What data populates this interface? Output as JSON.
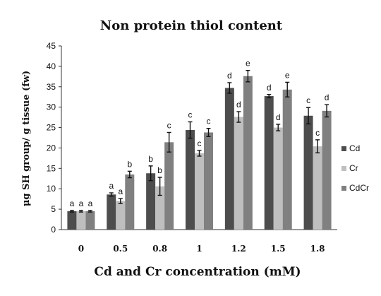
{
  "chart_data": {
    "type": "bar",
    "title": "Non protein thiol content",
    "xlabel": "Cd and Cr concentration (mM)",
    "ylabel": "μg SH group/ g tissue (fw)",
    "ylim": [
      0,
      45
    ],
    "yticks": [
      0,
      5,
      10,
      15,
      20,
      25,
      30,
      35,
      40,
      45
    ],
    "categories": [
      "0",
      "0.5",
      "0.8",
      "1",
      "1.2",
      "1.5",
      "1.8"
    ],
    "legend_position": "right",
    "series": [
      {
        "name": "Cd",
        "color": "#4d4d4d",
        "values": [
          4.5,
          8.6,
          13.8,
          24.4,
          34.7,
          32.7,
          27.9
        ],
        "errors": [
          0.2,
          0.4,
          1.8,
          2.0,
          1.3,
          0.4,
          2.0
        ],
        "labels": [
          "a",
          "a",
          "b",
          "c",
          "d",
          "d",
          "c"
        ]
      },
      {
        "name": "Cr",
        "color": "#bfbfbf",
        "values": [
          4.5,
          7.0,
          10.6,
          18.7,
          27.6,
          25.0,
          20.4
        ],
        "errors": [
          0.2,
          0.6,
          2.2,
          0.7,
          1.3,
          0.8,
          1.6
        ],
        "labels": [
          "a",
          "a",
          "b",
          "c",
          "d",
          "d",
          "c"
        ]
      },
      {
        "name": "CdCr",
        "color": "#808080",
        "values": [
          4.5,
          13.5,
          21.4,
          23.8,
          37.6,
          34.3,
          29.1
        ],
        "errors": [
          0.2,
          0.8,
          2.4,
          1.0,
          1.4,
          1.8,
          1.5
        ],
        "labels": [
          "a",
          "b",
          "c",
          "c",
          "e",
          "e",
          "d"
        ]
      }
    ]
  }
}
